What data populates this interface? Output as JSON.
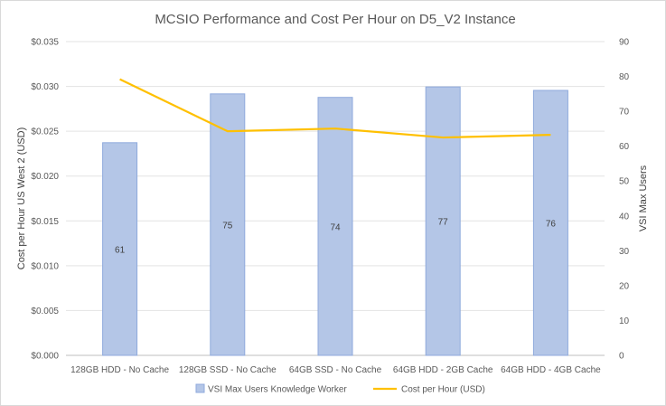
{
  "chart_data": {
    "type": "bar+line",
    "title": "MCSIO Performance and Cost Per Hour on D5_V2 Instance",
    "categories": [
      "128GB HDD - No Cache",
      "128GB SSD - No Cache",
      "64GB SSD - No Cache",
      "64GB HDD - 2GB Cache",
      "64GB HDD - 4GB Cache"
    ],
    "series": [
      {
        "name": "VSI Max Users Knowledge Worker",
        "type": "bar",
        "axis": "secondary",
        "values": [
          61,
          75,
          74,
          77,
          76
        ],
        "data_labels": [
          "61",
          "75",
          "74",
          "77",
          "76"
        ],
        "color": "#b4c6e7",
        "border_color": "#8faadc"
      },
      {
        "name": "Cost per Hour (USD)",
        "type": "line",
        "axis": "primary",
        "values": [
          0.0308,
          0.025,
          0.0253,
          0.0243,
          0.0246
        ],
        "color": "#ffc000"
      }
    ],
    "ylabel": "Cost per Hour US West 2 (USD)",
    "y2label": "VSI Max Users",
    "ylim": [
      0,
      0.035
    ],
    "y2lim": [
      0,
      90
    ],
    "y_ticks": [
      "$0.000",
      "$0.005",
      "$0.010",
      "$0.015",
      "$0.020",
      "$0.025",
      "$0.030",
      "$0.035"
    ],
    "y2_ticks": [
      "0",
      "10",
      "20",
      "30",
      "40",
      "50",
      "60",
      "70",
      "80",
      "90"
    ],
    "grid": true,
    "legend": "bottom"
  }
}
